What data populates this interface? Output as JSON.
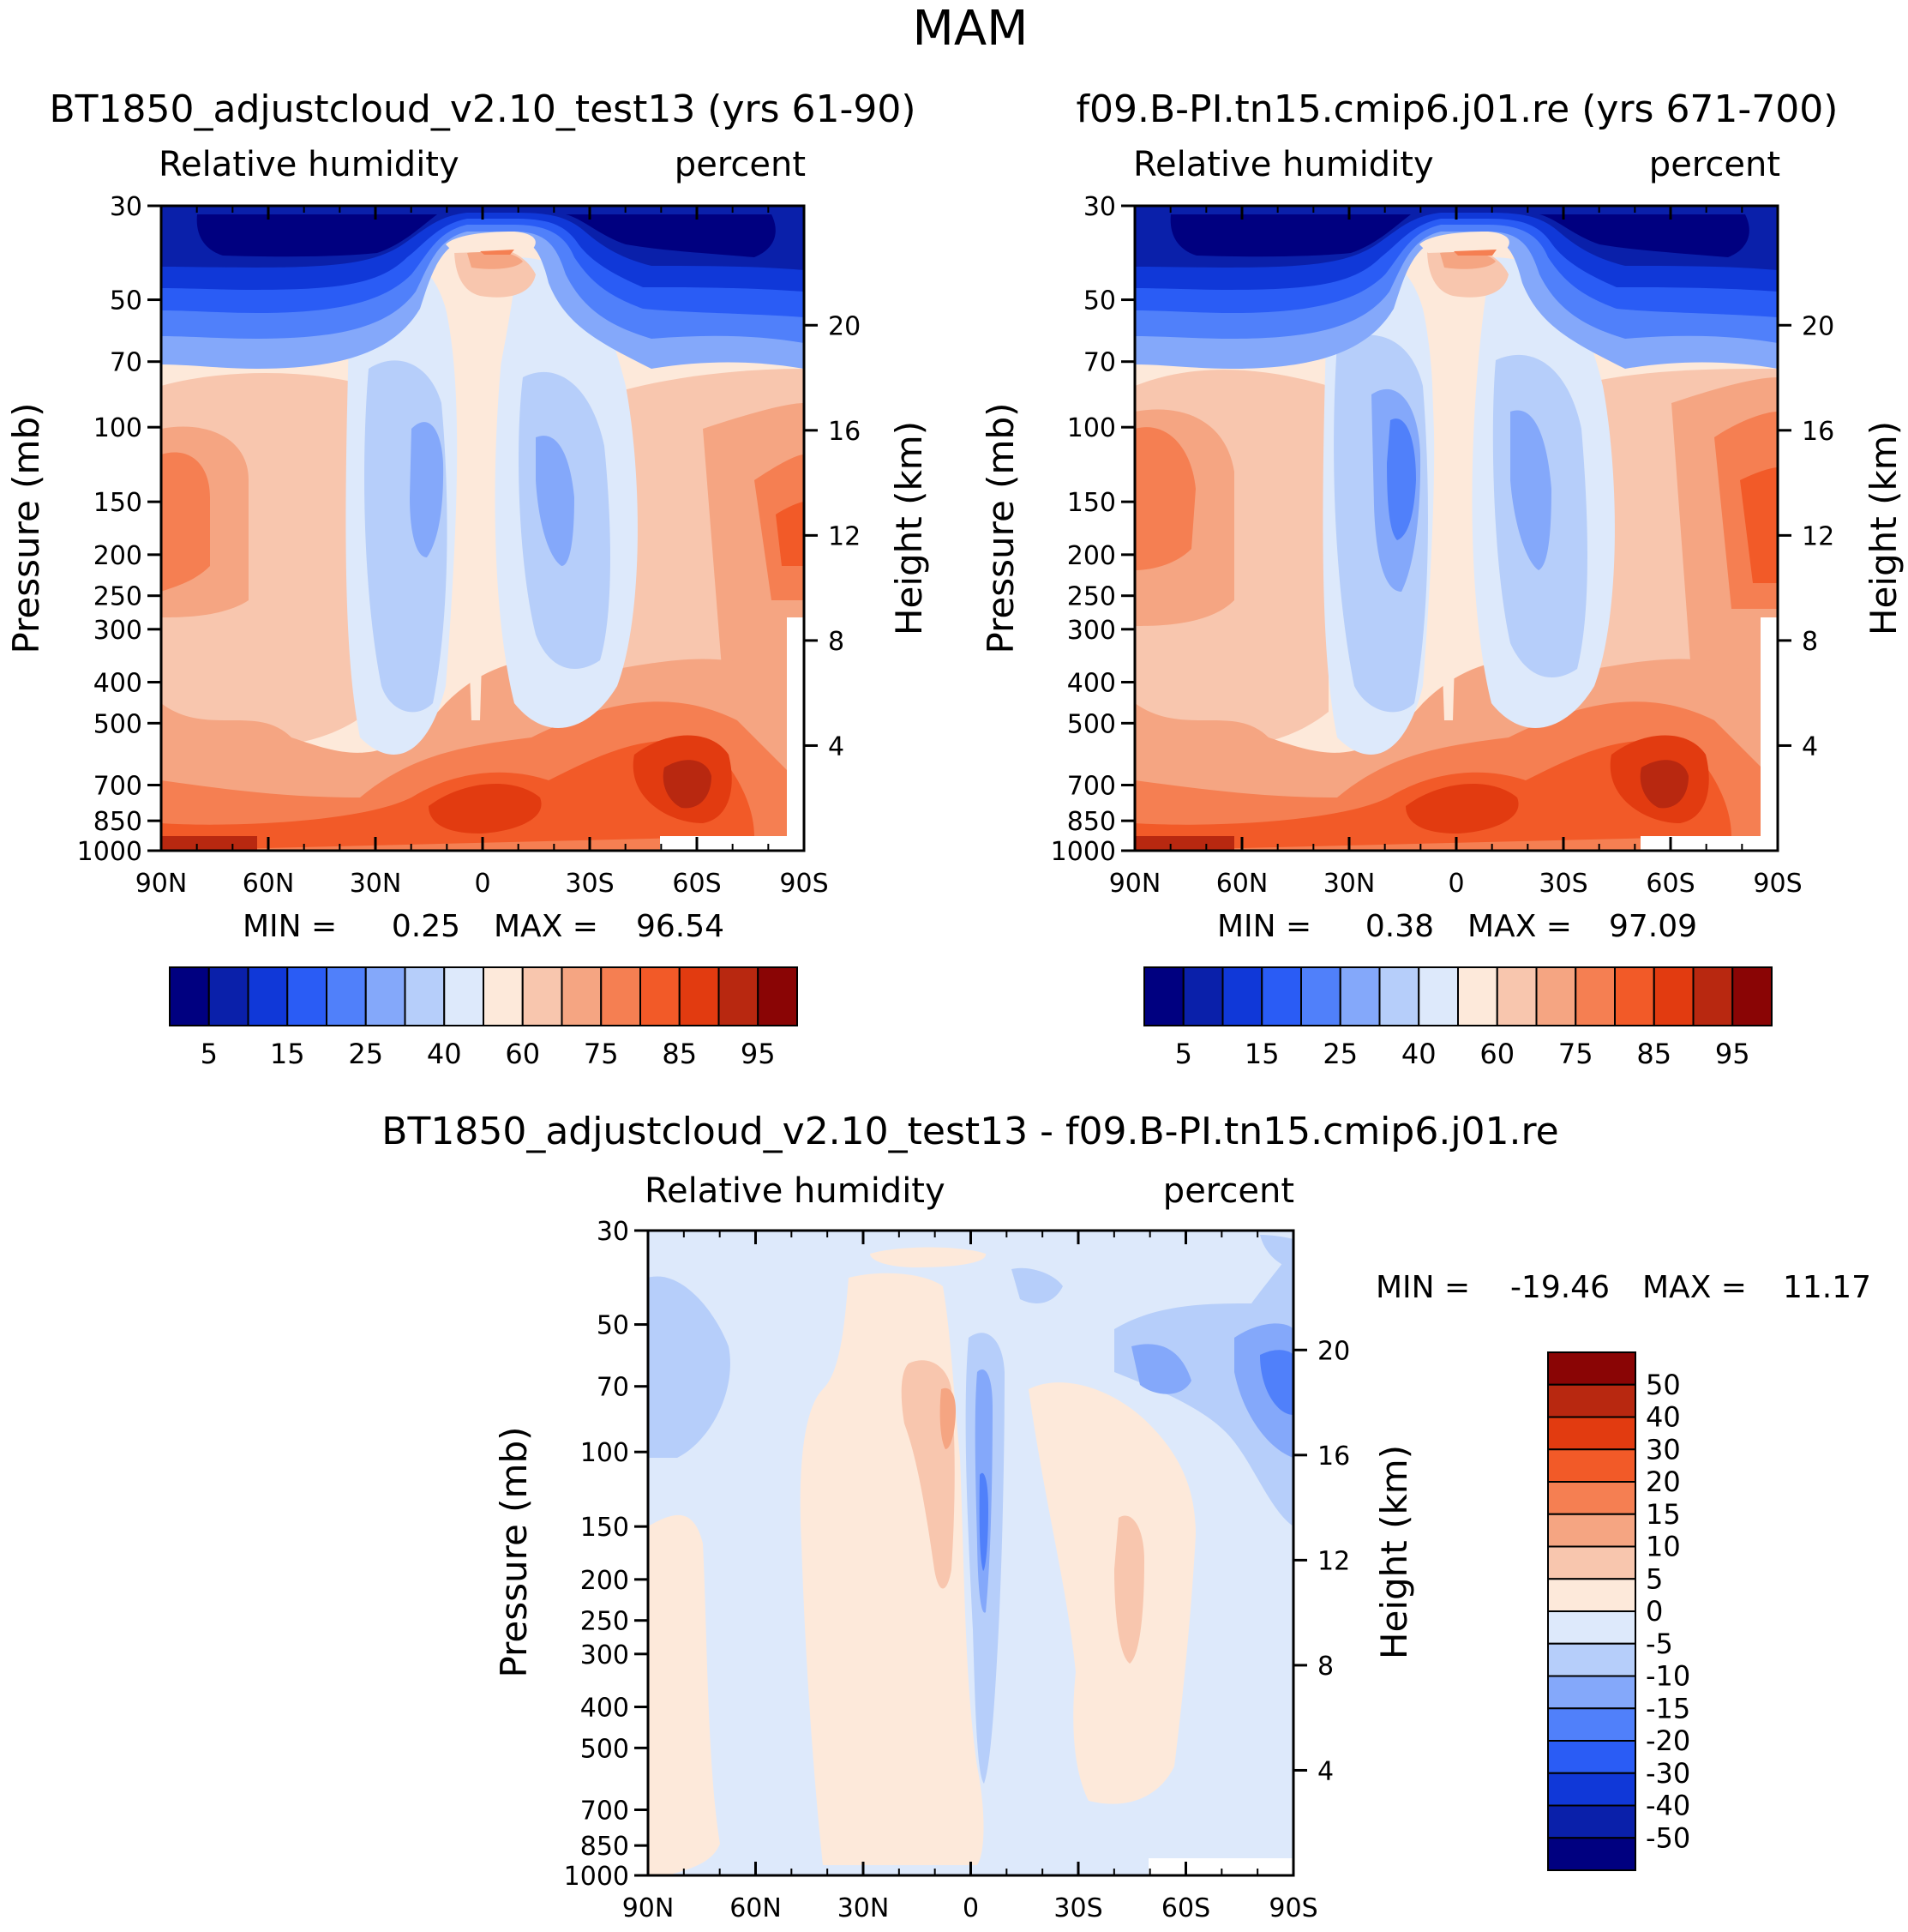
{
  "page_title": "MAM",
  "colors": {
    "abs_scale": [
      "#000080",
      "#0a20aa",
      "#1038d8",
      "#2a5cf5",
      "#5080fa",
      "#84a8fa",
      "#b6cefa",
      "#dde9fb",
      "#fde9da",
      "#f8c6ae",
      "#f5a582",
      "#f57f52",
      "#f25a28",
      "#e23b10",
      "#b82810",
      "#8a0505"
    ],
    "diff_scale": [
      "#000080",
      "#0a20aa",
      "#1038d8",
      "#2a5cf5",
      "#5080fa",
      "#84a8fa",
      "#b6cefa",
      "#dde9fb",
      "#fde9da",
      "#f8c6ae",
      "#f5a582",
      "#f57f52",
      "#f25a28",
      "#e23b10",
      "#b82810",
      "#8a0505"
    ]
  },
  "chart_data": [
    {
      "type": "contour",
      "name": "case-panel",
      "title": "BT1850_adjustcloud_v2.10_test13 (yrs 61-90)",
      "left_label": "Relative humidity",
      "right_label": "percent",
      "ylabel": "Pressure (mb)",
      "y2label": "Height (km)",
      "x_ticks": [
        "90N",
        "60N",
        "30N",
        "0",
        "30S",
        "60S",
        "90S"
      ],
      "y_ticks": [
        30,
        50,
        70,
        100,
        150,
        200,
        250,
        300,
        400,
        500,
        700,
        850,
        1000
      ],
      "y2_ticks": [
        20,
        16,
        12,
        8,
        4
      ],
      "min_label": "MIN =",
      "min_value": "0.25",
      "max_label": "MAX =",
      "max_value": "96.54",
      "colorbar_labels": [
        "5",
        "15",
        "25",
        "40",
        "60",
        "75",
        "85",
        "95"
      ]
    },
    {
      "type": "contour",
      "name": "control-panel",
      "title": "f09.B-PI.tn15.cmip6.j01.re (yrs 671-700)",
      "left_label": "Relative humidity",
      "right_label": "percent",
      "ylabel": "Pressure (mb)",
      "y2label": "Height (km)",
      "x_ticks": [
        "90N",
        "60N",
        "30N",
        "0",
        "30S",
        "60S",
        "90S"
      ],
      "y_ticks": [
        30,
        50,
        70,
        100,
        150,
        200,
        250,
        300,
        400,
        500,
        700,
        850,
        1000
      ],
      "y2_ticks": [
        20,
        16,
        12,
        8,
        4
      ],
      "min_label": "MIN =",
      "min_value": "0.38",
      "max_label": "MAX =",
      "max_value": "97.09",
      "colorbar_labels": [
        "5",
        "15",
        "25",
        "40",
        "60",
        "75",
        "85",
        "95"
      ]
    },
    {
      "type": "contour",
      "name": "difference-panel",
      "title": "BT1850_adjustcloud_v2.10_test13 - f09.B-PI.tn15.cmip6.j01.re",
      "left_label": "Relative humidity",
      "right_label": "percent",
      "ylabel": "Pressure (mb)",
      "y2label": "Height (km)",
      "x_ticks": [
        "90N",
        "60N",
        "30N",
        "0",
        "30S",
        "60S",
        "90S"
      ],
      "y_ticks": [
        30,
        50,
        70,
        100,
        150,
        200,
        250,
        300,
        400,
        500,
        700,
        850,
        1000
      ],
      "y2_ticks": [
        20,
        16,
        12,
        8,
        4
      ],
      "min_label": "MIN =",
      "min_value": "-19.46",
      "max_label": "MAX =",
      "max_value": "11.17",
      "colorbar_labels": [
        "50",
        "40",
        "30",
        "20",
        "15",
        "10",
        "5",
        "0",
        "-5",
        "-10",
        "-15",
        "-20",
        "-30",
        "-40",
        "-50"
      ]
    }
  ]
}
